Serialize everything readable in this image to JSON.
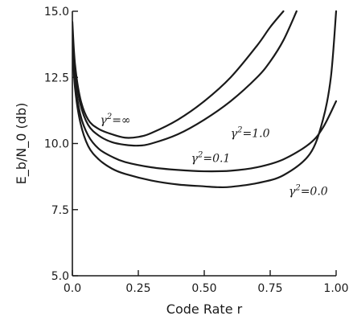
{
  "chart_data": {
    "type": "line",
    "xlabel": "Code Rate r",
    "ylabel": "E_b/N_0 (db)",
    "xlim": [
      0.0,
      1.0
    ],
    "ylim": [
      5.0,
      15.0
    ],
    "xticks": [
      "0.0",
      "0.25",
      "0.50",
      "0.75",
      "1.00"
    ],
    "yticks": [
      "5.0",
      "7.5",
      "10.0",
      "12.5",
      "15.0"
    ],
    "grid": false,
    "series": [
      {
        "name": "γ²=∞",
        "label_sup": "2",
        "label_base": "γ",
        "label_value": "=∞",
        "x": [
          0.0,
          0.01,
          0.03,
          0.06,
          0.1,
          0.15,
          0.2,
          0.25,
          0.3,
          0.4,
          0.5,
          0.6,
          0.7,
          0.75,
          0.8
        ],
        "y": [
          14.6,
          13.0,
          11.7,
          10.9,
          10.55,
          10.35,
          10.22,
          10.25,
          10.4,
          10.9,
          11.6,
          12.5,
          13.7,
          14.4,
          15.0
        ]
      },
      {
        "name": "γ²=1.0",
        "label_sup": "2",
        "label_base": "γ",
        "label_value": "=1.0",
        "x": [
          0.0,
          0.01,
          0.03,
          0.06,
          0.1,
          0.15,
          0.2,
          0.25,
          0.3,
          0.4,
          0.5,
          0.6,
          0.7,
          0.75,
          0.8,
          0.85
        ],
        "y": [
          14.3,
          12.8,
          11.5,
          10.7,
          10.3,
          10.05,
          9.95,
          9.92,
          10.0,
          10.35,
          10.9,
          11.6,
          12.5,
          13.1,
          13.9,
          15.0
        ]
      },
      {
        "name": "γ²=0.1",
        "label_sup": "2",
        "label_base": "γ",
        "label_value": "=0.1",
        "x": [
          0.0,
          0.01,
          0.03,
          0.06,
          0.1,
          0.15,
          0.2,
          0.3,
          0.4,
          0.5,
          0.6,
          0.7,
          0.8,
          0.9,
          0.95,
          1.0
        ],
        "y": [
          14.0,
          12.4,
          11.1,
          10.3,
          9.8,
          9.5,
          9.3,
          9.1,
          9.0,
          8.95,
          8.97,
          9.1,
          9.4,
          10.0,
          10.6,
          11.6
        ]
      },
      {
        "name": "γ²=0.0",
        "label_sup": "2",
        "label_base": "γ",
        "label_value": "=0.0",
        "x": [
          0.0,
          0.01,
          0.03,
          0.06,
          0.1,
          0.15,
          0.2,
          0.3,
          0.4,
          0.5,
          0.55,
          0.6,
          0.7,
          0.8,
          0.9,
          0.95,
          0.98,
          1.0
        ],
        "y": [
          13.7,
          12.1,
          10.8,
          9.9,
          9.4,
          9.05,
          8.85,
          8.6,
          8.45,
          8.38,
          8.35,
          8.36,
          8.5,
          8.8,
          9.6,
          10.9,
          12.5,
          15.0
        ]
      }
    ]
  }
}
